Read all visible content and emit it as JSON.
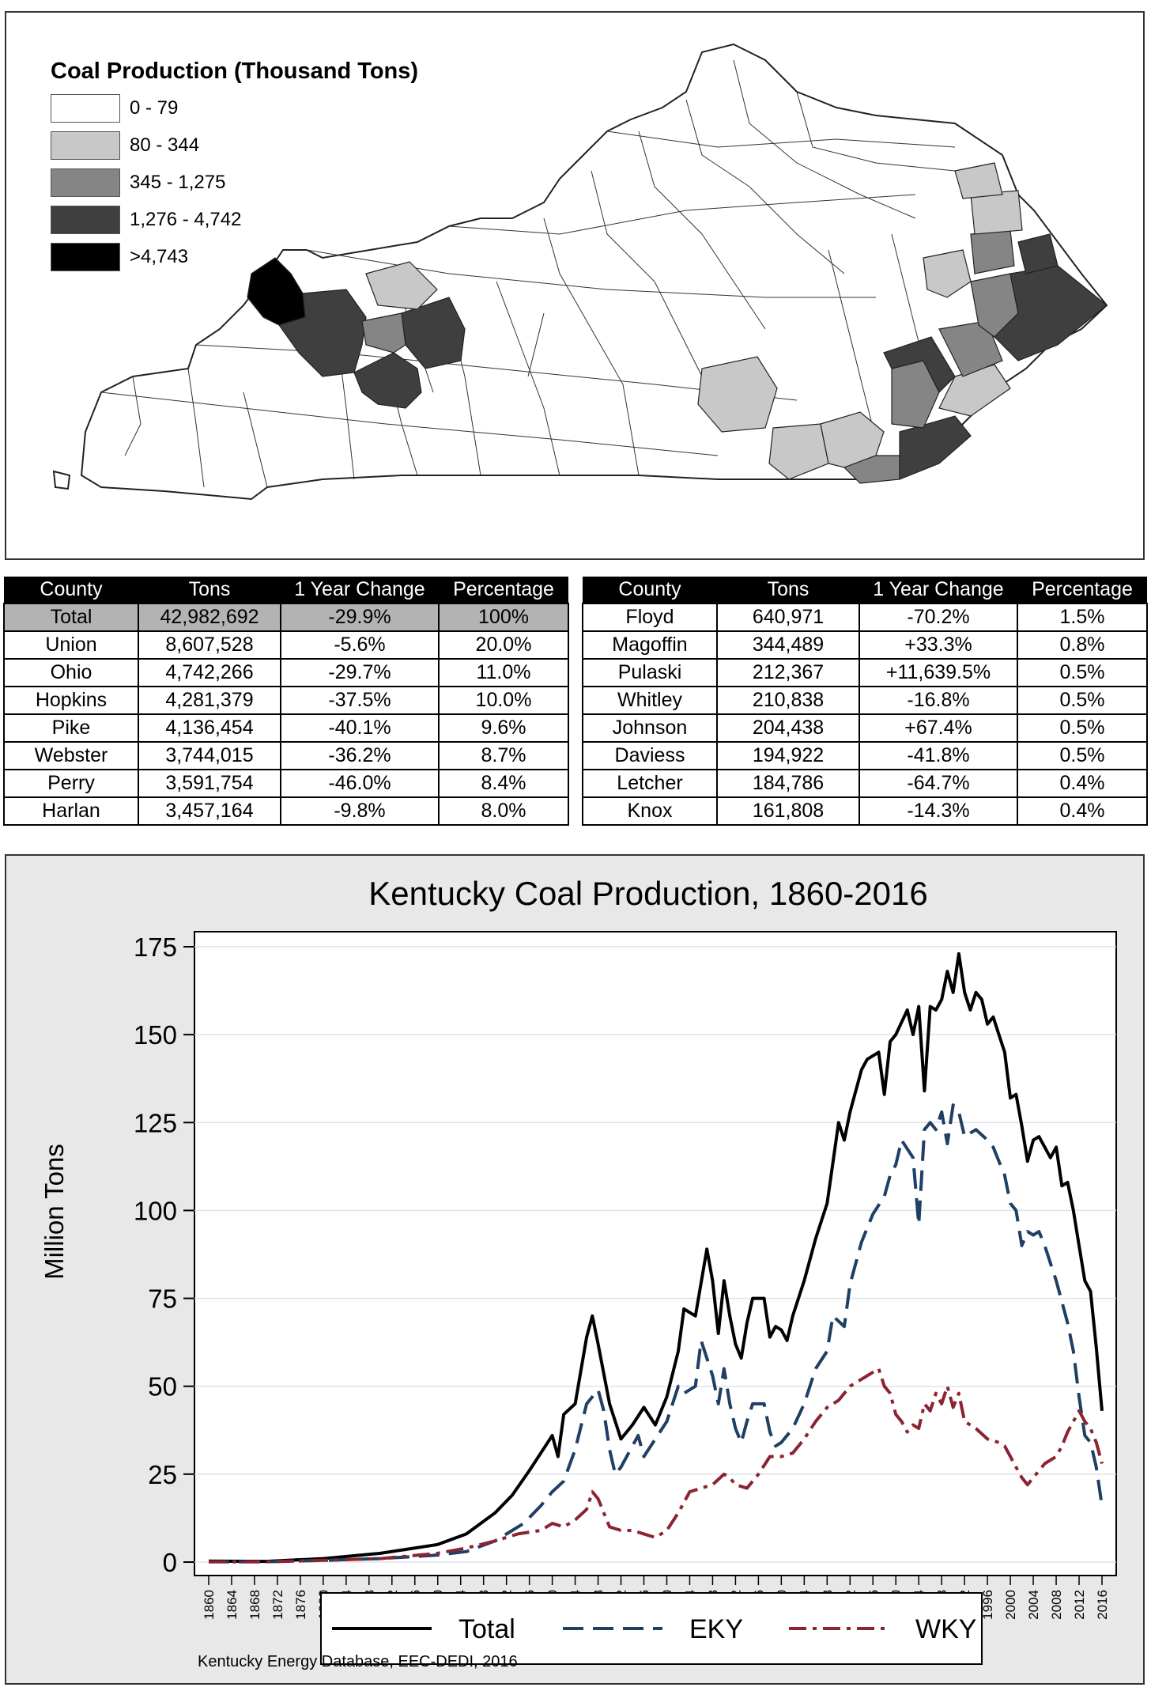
{
  "map": {
    "legend_title": "Coal Production (Thousand Tons)",
    "legend": [
      {
        "label": "0 - 79",
        "color": "#ffffff"
      },
      {
        "label": "80 - 344",
        "color": "#c8c8c8"
      },
      {
        "label": "345 - 1,275",
        "color": "#858585"
      },
      {
        "label": "1,276 - 4,742",
        "color": "#3f3f3f"
      },
      {
        "label": ">4,743",
        "color": "#000000"
      }
    ]
  },
  "tables": {
    "headers": [
      "County",
      "Tons",
      "1 Year Change",
      "Percentage"
    ],
    "left": [
      [
        "Total",
        "42,982,692",
        "-29.9%",
        "100%"
      ],
      [
        "Union",
        "8,607,528",
        "-5.6%",
        "20.0%"
      ],
      [
        "Ohio",
        "4,742,266",
        "-29.7%",
        "11.0%"
      ],
      [
        "Hopkins",
        "4,281,379",
        "-37.5%",
        "10.0%"
      ],
      [
        "Pike",
        "4,136,454",
        "-40.1%",
        "9.6%"
      ],
      [
        "Webster",
        "3,744,015",
        "-36.2%",
        "8.7%"
      ],
      [
        "Perry",
        "3,591,754",
        "-46.0%",
        "8.4%"
      ],
      [
        "Harlan",
        "3,457,164",
        "-9.8%",
        "8.0%"
      ]
    ],
    "right": [
      [
        "Floyd",
        "640,971",
        "-70.2%",
        "1.5%"
      ],
      [
        "Magoffin",
        "344,489",
        "+33.3%",
        "0.8%"
      ],
      [
        "Pulaski",
        "212,367",
        "+11,639.5%",
        "0.5%"
      ],
      [
        "Whitley",
        "210,838",
        "-16.8%",
        "0.5%"
      ],
      [
        "Johnson",
        "204,438",
        "+67.4%",
        "0.5%"
      ],
      [
        "Daviess",
        "194,922",
        "-41.8%",
        "0.5%"
      ],
      [
        "Letcher",
        "184,786",
        "-64.7%",
        "0.4%"
      ],
      [
        "Knox",
        "161,808",
        "-14.3%",
        "0.4%"
      ]
    ]
  },
  "chart_data": {
    "type": "line",
    "title": "Kentucky Coal Production, 1860-2016",
    "ylabel": "Million Tons",
    "xlabel": "",
    "ylim": [
      0,
      175
    ],
    "yticks": [
      0,
      25,
      50,
      75,
      100,
      125,
      150,
      175
    ],
    "xlim": [
      1860,
      2016
    ],
    "xtick_start": 1860,
    "xtick_end": 2016,
    "xtick_step": 4,
    "grid": "horizontal",
    "legend_position": "bottom",
    "source": "Kentucky Energy Database, EEC-DEDI, 2016",
    "series": [
      {
        "name": "Total",
        "color": "#000000",
        "style": "solid",
        "points": [
          [
            1860,
            0.3
          ],
          [
            1870,
            0.2
          ],
          [
            1880,
            1
          ],
          [
            1890,
            2.5
          ],
          [
            1900,
            5
          ],
          [
            1905,
            8
          ],
          [
            1910,
            14
          ],
          [
            1913,
            19
          ],
          [
            1916,
            26
          ],
          [
            1918,
            31
          ],
          [
            1920,
            36
          ],
          [
            1921,
            30
          ],
          [
            1922,
            42
          ],
          [
            1924,
            45
          ],
          [
            1926,
            64
          ],
          [
            1927,
            70
          ],
          [
            1928,
            62
          ],
          [
            1930,
            45
          ],
          [
            1932,
            35
          ],
          [
            1934,
            39
          ],
          [
            1936,
            44
          ],
          [
            1938,
            39
          ],
          [
            1940,
            47
          ],
          [
            1942,
            60
          ],
          [
            1943,
            72
          ],
          [
            1945,
            70
          ],
          [
            1947,
            89
          ],
          [
            1948,
            80
          ],
          [
            1949,
            65
          ],
          [
            1950,
            80
          ],
          [
            1951,
            70
          ],
          [
            1952,
            62
          ],
          [
            1953,
            58
          ],
          [
            1954,
            68
          ],
          [
            1955,
            75
          ],
          [
            1957,
            75
          ],
          [
            1958,
            64
          ],
          [
            1959,
            67
          ],
          [
            1960,
            66
          ],
          [
            1961,
            63
          ],
          [
            1962,
            70
          ],
          [
            1964,
            80
          ],
          [
            1966,
            92
          ],
          [
            1968,
            102
          ],
          [
            1970,
            125
          ],
          [
            1971,
            120
          ],
          [
            1972,
            128
          ],
          [
            1974,
            140
          ],
          [
            1975,
            143
          ],
          [
            1977,
            145
          ],
          [
            1978,
            133
          ],
          [
            1979,
            148
          ],
          [
            1980,
            150
          ],
          [
            1982,
            157
          ],
          [
            1983,
            150
          ],
          [
            1984,
            158
          ],
          [
            1985,
            134
          ],
          [
            1986,
            158
          ],
          [
            1987,
            157
          ],
          [
            1988,
            160
          ],
          [
            1989,
            168
          ],
          [
            1990,
            162
          ],
          [
            1991,
            173
          ],
          [
            1992,
            162
          ],
          [
            1993,
            157
          ],
          [
            1994,
            162
          ],
          [
            1995,
            160
          ],
          [
            1996,
            153
          ],
          [
            1997,
            155
          ],
          [
            1998,
            150
          ],
          [
            1999,
            145
          ],
          [
            2000,
            132
          ],
          [
            2001,
            133
          ],
          [
            2002,
            124
          ],
          [
            2003,
            114
          ],
          [
            2004,
            120
          ],
          [
            2005,
            121
          ],
          [
            2006,
            118
          ],
          [
            2007,
            115
          ],
          [
            2008,
            118
          ],
          [
            2009,
            107
          ],
          [
            2010,
            108
          ],
          [
            2011,
            100
          ],
          [
            2012,
            90
          ],
          [
            2013,
            80
          ],
          [
            2014,
            77
          ],
          [
            2015,
            61
          ],
          [
            2016,
            43
          ]
        ]
      },
      {
        "name": "EKY",
        "color": "#1f3f63",
        "style": "dashed",
        "points": [
          [
            1860,
            0.1
          ],
          [
            1870,
            0.1
          ],
          [
            1880,
            0.5
          ],
          [
            1890,
            1
          ],
          [
            1900,
            2
          ],
          [
            1905,
            3
          ],
          [
            1910,
            6
          ],
          [
            1915,
            11
          ],
          [
            1918,
            16
          ],
          [
            1920,
            20
          ],
          [
            1922,
            23
          ],
          [
            1924,
            32
          ],
          [
            1926,
            45
          ],
          [
            1928,
            49
          ],
          [
            1929,
            43
          ],
          [
            1930,
            32
          ],
          [
            1931,
            25
          ],
          [
            1932,
            27
          ],
          [
            1934,
            33
          ],
          [
            1935,
            36
          ],
          [
            1936,
            30
          ],
          [
            1938,
            35
          ],
          [
            1940,
            40
          ],
          [
            1942,
            50
          ],
          [
            1943,
            48
          ],
          [
            1945,
            50
          ],
          [
            1946,
            63
          ],
          [
            1948,
            53
          ],
          [
            1949,
            45
          ],
          [
            1950,
            55
          ],
          [
            1951,
            45
          ],
          [
            1952,
            38
          ],
          [
            1953,
            34
          ],
          [
            1954,
            40
          ],
          [
            1955,
            45
          ],
          [
            1957,
            45
          ],
          [
            1958,
            37
          ],
          [
            1959,
            33
          ],
          [
            1960,
            34
          ],
          [
            1962,
            38
          ],
          [
            1964,
            45
          ],
          [
            1966,
            55
          ],
          [
            1968,
            60
          ],
          [
            1969,
            70
          ],
          [
            1971,
            67
          ],
          [
            1972,
            79
          ],
          [
            1974,
            91
          ],
          [
            1976,
            99
          ],
          [
            1978,
            104
          ],
          [
            1979,
            110
          ],
          [
            1980,
            113
          ],
          [
            1981,
            120
          ],
          [
            1983,
            115
          ],
          [
            1984,
            96
          ],
          [
            1985,
            123
          ],
          [
            1986,
            125
          ],
          [
            1987,
            123
          ],
          [
            1988,
            128
          ],
          [
            1989,
            119
          ],
          [
            1990,
            130
          ],
          [
            1991,
            128
          ],
          [
            1992,
            121
          ],
          [
            1994,
            123
          ],
          [
            1996,
            120
          ],
          [
            1997,
            118
          ],
          [
            1998,
            114
          ],
          [
            1999,
            110
          ],
          [
            2000,
            102
          ],
          [
            2001,
            100
          ],
          [
            2002,
            90
          ],
          [
            2003,
            94
          ],
          [
            2004,
            93
          ],
          [
            2005,
            94
          ],
          [
            2006,
            90
          ],
          [
            2007,
            85
          ],
          [
            2008,
            80
          ],
          [
            2009,
            74
          ],
          [
            2010,
            68
          ],
          [
            2011,
            60
          ],
          [
            2012,
            47
          ],
          [
            2013,
            36
          ],
          [
            2014,
            34
          ],
          [
            2015,
            27
          ],
          [
            2016,
            16
          ]
        ]
      },
      {
        "name": "WKY",
        "color": "#8b2432",
        "style": "dashdot",
        "points": [
          [
            1860,
            0.1
          ],
          [
            1870,
            0.1
          ],
          [
            1880,
            0.5
          ],
          [
            1890,
            1
          ],
          [
            1900,
            2.5
          ],
          [
            1905,
            4
          ],
          [
            1910,
            6
          ],
          [
            1914,
            8
          ],
          [
            1918,
            9
          ],
          [
            1920,
            11
          ],
          [
            1922,
            10
          ],
          [
            1924,
            12
          ],
          [
            1926,
            15
          ],
          [
            1927,
            20
          ],
          [
            1928,
            18
          ],
          [
            1930,
            10
          ],
          [
            1932,
            9
          ],
          [
            1934,
            9
          ],
          [
            1936,
            8
          ],
          [
            1938,
            7
          ],
          [
            1940,
            9
          ],
          [
            1942,
            14
          ],
          [
            1944,
            20
          ],
          [
            1946,
            21
          ],
          [
            1948,
            22
          ],
          [
            1950,
            25
          ],
          [
            1951,
            24
          ],
          [
            1952,
            22
          ],
          [
            1954,
            21
          ],
          [
            1956,
            25
          ],
          [
            1958,
            30
          ],
          [
            1960,
            30
          ],
          [
            1962,
            31
          ],
          [
            1964,
            35
          ],
          [
            1966,
            40
          ],
          [
            1968,
            44
          ],
          [
            1970,
            46
          ],
          [
            1972,
            50
          ],
          [
            1974,
            52
          ],
          [
            1976,
            54
          ],
          [
            1977,
            55
          ],
          [
            1978,
            50
          ],
          [
            1979,
            48
          ],
          [
            1980,
            42
          ],
          [
            1981,
            40
          ],
          [
            1982,
            37
          ],
          [
            1983,
            39
          ],
          [
            1984,
            38
          ],
          [
            1985,
            45
          ],
          [
            1986,
            43
          ],
          [
            1987,
            48
          ],
          [
            1988,
            45
          ],
          [
            1989,
            50
          ],
          [
            1990,
            44
          ],
          [
            1991,
            48
          ],
          [
            1992,
            40
          ],
          [
            1994,
            38
          ],
          [
            1996,
            35
          ],
          [
            1998,
            34
          ],
          [
            1999,
            33
          ],
          [
            2000,
            30
          ],
          [
            2001,
            27
          ],
          [
            2002,
            24
          ],
          [
            2003,
            22
          ],
          [
            2004,
            24
          ],
          [
            2005,
            26
          ],
          [
            2006,
            28
          ],
          [
            2007,
            29
          ],
          [
            2008,
            30
          ],
          [
            2009,
            33
          ],
          [
            2010,
            37
          ],
          [
            2011,
            40
          ],
          [
            2012,
            43
          ],
          [
            2013,
            40
          ],
          [
            2014,
            38
          ],
          [
            2015,
            34
          ],
          [
            2016,
            28
          ]
        ]
      }
    ]
  }
}
